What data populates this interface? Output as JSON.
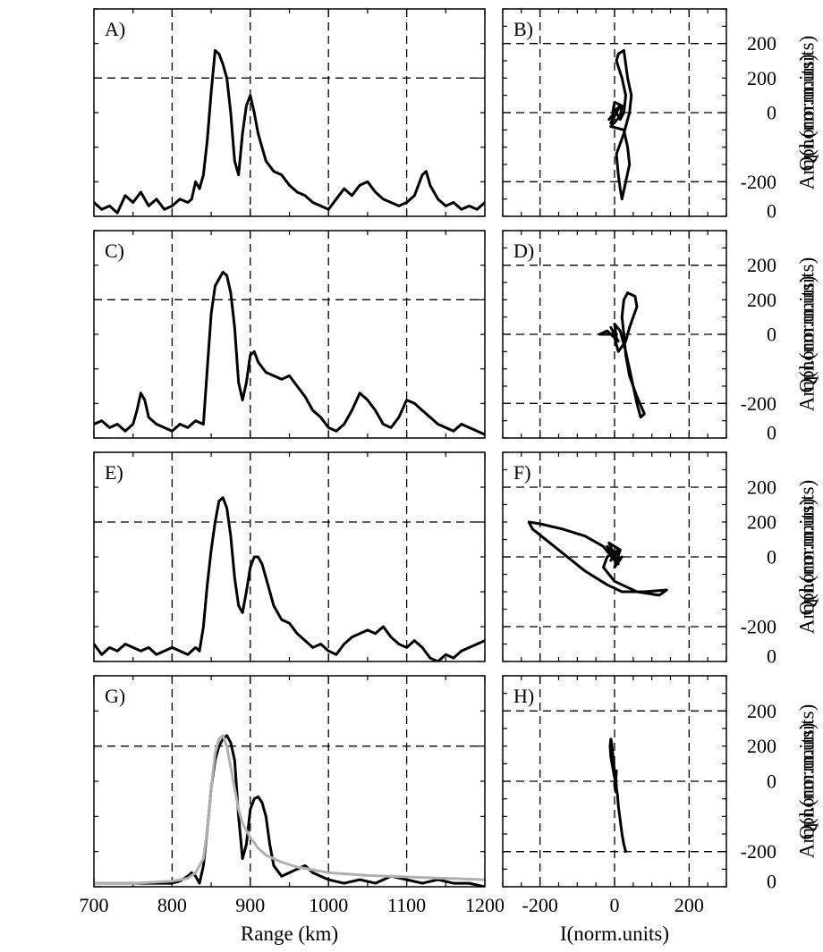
{
  "chart_data": [
    {
      "id": "A",
      "type": "line",
      "panel_label": "A)",
      "ylabel": "Ampl.(norm.units)",
      "xlim": [
        700,
        1200
      ],
      "ylim": [
        0,
        300
      ],
      "xticks": [
        700,
        800,
        900,
        1000,
        1100,
        1200
      ],
      "yticks": [
        0,
        200
      ],
      "x_tick_labels": false,
      "grid": true,
      "series": [
        {
          "color": "#000000",
          "x": [
            700,
            710,
            720,
            730,
            740,
            750,
            760,
            770,
            780,
            790,
            800,
            810,
            820,
            825,
            830,
            835,
            840,
            845,
            850,
            855,
            860,
            865,
            870,
            875,
            880,
            885,
            890,
            895,
            900,
            905,
            910,
            915,
            920,
            930,
            940,
            950,
            960,
            970,
            980,
            990,
            1000,
            1010,
            1020,
            1030,
            1040,
            1050,
            1060,
            1070,
            1080,
            1090,
            1100,
            1110,
            1120,
            1125,
            1130,
            1140,
            1150,
            1160,
            1170,
            1180,
            1190,
            1200
          ],
          "y": [
            20,
            10,
            15,
            5,
            30,
            20,
            35,
            15,
            25,
            10,
            15,
            25,
            20,
            25,
            50,
            40,
            60,
            110,
            180,
            240,
            235,
            220,
            200,
            150,
            80,
            60,
            120,
            160,
            175,
            150,
            120,
            100,
            80,
            65,
            60,
            45,
            35,
            30,
            20,
            15,
            10,
            25,
            40,
            30,
            45,
            50,
            35,
            25,
            20,
            15,
            20,
            30,
            60,
            65,
            45,
            25,
            15,
            20,
            10,
            15,
            10,
            20
          ]
        }
      ]
    },
    {
      "id": "B",
      "type": "line",
      "panel_label": "B)",
      "ylabel": "Q(norm.units)",
      "xlim": [
        -300,
        300
      ],
      "ylim": [
        -300,
        300
      ],
      "xticks": [
        -200,
        0,
        200
      ],
      "yticks": [
        -200,
        0,
        200
      ],
      "x_tick_labels": false,
      "grid": true,
      "series": [
        {
          "color": "#000000",
          "x": [
            0,
            -15,
            10,
            -10,
            15,
            -5,
            0,
            20,
            15,
            -10,
            25,
            35,
            40,
            30,
            20,
            15,
            10,
            5,
            25,
            40,
            45,
            35,
            25,
            10,
            5,
            20,
            30,
            25,
            15,
            0,
            -5,
            5
          ],
          "y": [
            0,
            -20,
            10,
            -30,
            20,
            0,
            30,
            20,
            -10,
            -40,
            -50,
            -100,
            -150,
            -200,
            -250,
            -220,
            -180,
            -120,
            -60,
            0,
            50,
            100,
            180,
            170,
            150,
            100,
            50,
            0,
            -20,
            10,
            -10,
            0
          ]
        }
      ]
    },
    {
      "id": "C",
      "type": "line",
      "panel_label": "C)",
      "ylabel": "Ampl.(norm.units)",
      "xlim": [
        700,
        1200
      ],
      "ylim": [
        0,
        300
      ],
      "xticks": [
        700,
        800,
        900,
        1000,
        1100,
        1200
      ],
      "yticks": [
        0,
        200
      ],
      "x_tick_labels": false,
      "grid": true,
      "series": [
        {
          "color": "#000000",
          "x": [
            700,
            710,
            720,
            730,
            740,
            750,
            755,
            760,
            765,
            770,
            780,
            790,
            800,
            810,
            820,
            830,
            840,
            845,
            850,
            855,
            860,
            865,
            870,
            875,
            880,
            885,
            890,
            895,
            900,
            905,
            910,
            920,
            930,
            940,
            950,
            960,
            970,
            980,
            990,
            1000,
            1010,
            1020,
            1030,
            1040,
            1050,
            1060,
            1070,
            1080,
            1090,
            1100,
            1110,
            1120,
            1130,
            1140,
            1150,
            1160,
            1170,
            1180,
            1190,
            1200
          ],
          "y": [
            20,
            25,
            15,
            20,
            10,
            20,
            40,
            65,
            55,
            30,
            20,
            15,
            10,
            20,
            15,
            25,
            20,
            100,
            180,
            220,
            230,
            240,
            235,
            210,
            160,
            80,
            55,
            80,
            120,
            125,
            110,
            95,
            90,
            85,
            90,
            75,
            60,
            40,
            30,
            15,
            10,
            20,
            40,
            65,
            55,
            40,
            20,
            15,
            30,
            55,
            50,
            40,
            30,
            20,
            15,
            10,
            20,
            15,
            10,
            5
          ]
        }
      ]
    },
    {
      "id": "D",
      "type": "line",
      "panel_label": "D)",
      "ylabel": "Q(norm.units)",
      "xlim": [
        -300,
        300
      ],
      "ylim": [
        -300,
        300
      ],
      "xticks": [
        -200,
        0,
        200
      ],
      "yticks": [
        -200,
        0,
        200
      ],
      "x_tick_labels": false,
      "grid": true,
      "series": [
        {
          "color": "#000000",
          "x": [
            0,
            -40,
            -20,
            10,
            -10,
            5,
            0,
            15,
            30,
            40,
            50,
            60,
            70,
            80,
            60,
            40,
            30,
            25,
            20,
            25,
            35,
            55,
            60,
            50,
            40,
            30,
            10,
            0,
            -5,
            5
          ],
          "y": [
            0,
            0,
            10,
            -20,
            20,
            -10,
            30,
            10,
            -50,
            -100,
            -150,
            -200,
            -240,
            -230,
            -180,
            -120,
            -60,
            0,
            50,
            100,
            120,
            110,
            80,
            50,
            20,
            -20,
            -50,
            -10,
            10,
            0
          ]
        }
      ]
    },
    {
      "id": "E",
      "type": "line",
      "panel_label": "E)",
      "ylabel": "Ampl.(norm.units)",
      "xlim": [
        700,
        1200
      ],
      "ylim": [
        0,
        300
      ],
      "xticks": [
        700,
        800,
        900,
        1000,
        1100,
        1200
      ],
      "yticks": [
        0,
        200
      ],
      "x_tick_labels": false,
      "grid": true,
      "series": [
        {
          "color": "#000000",
          "x": [
            700,
            710,
            720,
            730,
            740,
            750,
            760,
            770,
            780,
            790,
            800,
            810,
            820,
            830,
            835,
            840,
            845,
            850,
            855,
            860,
            865,
            870,
            875,
            880,
            885,
            890,
            895,
            900,
            905,
            910,
            915,
            920,
            930,
            940,
            950,
            960,
            970,
            980,
            990,
            1000,
            1010,
            1020,
            1030,
            1040,
            1050,
            1060,
            1070,
            1080,
            1090,
            1100,
            1110,
            1120,
            1130,
            1140,
            1150,
            1160,
            1170,
            1180,
            1190,
            1200
          ],
          "y": [
            25,
            10,
            20,
            15,
            25,
            20,
            15,
            20,
            10,
            15,
            20,
            15,
            10,
            20,
            15,
            50,
            110,
            160,
            200,
            230,
            235,
            220,
            180,
            120,
            80,
            70,
            100,
            135,
            150,
            150,
            140,
            120,
            80,
            60,
            55,
            40,
            30,
            20,
            25,
            15,
            10,
            25,
            35,
            40,
            45,
            40,
            50,
            35,
            25,
            20,
            30,
            20,
            5,
            0,
            10,
            5,
            15,
            20,
            25,
            30
          ]
        }
      ]
    },
    {
      "id": "F",
      "type": "line",
      "panel_label": "F)",
      "ylabel": "Q(norm.units)",
      "xlim": [
        -300,
        300
      ],
      "ylim": [
        -300,
        300
      ],
      "xticks": [
        -200,
        0,
        200
      ],
      "yticks": [
        -200,
        0,
        200
      ],
      "x_tick_labels": false,
      "grid": true,
      "series": [
        {
          "color": "#000000",
          "x": [
            0,
            -20,
            10,
            -15,
            15,
            0,
            20,
            0,
            -30,
            -80,
            -140,
            -200,
            -230,
            -220,
            -150,
            -80,
            -20,
            20,
            80,
            140,
            120,
            60,
            0,
            -30,
            -20,
            10,
            -10,
            5,
            0
          ],
          "y": [
            0,
            30,
            -20,
            40,
            20,
            -30,
            0,
            -10,
            30,
            60,
            80,
            95,
            100,
            80,
            20,
            -40,
            -80,
            -100,
            -100,
            -95,
            -110,
            -100,
            -70,
            -30,
            0,
            20,
            -10,
            10,
            0
          ]
        }
      ]
    },
    {
      "id": "G",
      "type": "line",
      "panel_label": "G)",
      "ylabel": "Ampl.(norm.units)",
      "xlabel": "Range (km)",
      "xlim": [
        700,
        1200
      ],
      "ylim": [
        0,
        300
      ],
      "xticks": [
        700,
        800,
        900,
        1000,
        1100,
        1200
      ],
      "yticks": [
        0,
        200
      ],
      "x_tick_labels": true,
      "grid": true,
      "series": [
        {
          "color": "#000000",
          "x": [
            700,
            750,
            800,
            810,
            820,
            825,
            830,
            835,
            840,
            845,
            850,
            855,
            860,
            865,
            870,
            875,
            880,
            885,
            890,
            895,
            900,
            905,
            910,
            915,
            920,
            925,
            930,
            940,
            950,
            960,
            970,
            980,
            990,
            1000,
            1020,
            1040,
            1060,
            1080,
            1100,
            1120,
            1140,
            1160,
            1180,
            1200
          ],
          "y": [
            5,
            5,
            5,
            8,
            15,
            20,
            15,
            5,
            30,
            80,
            140,
            180,
            200,
            210,
            215,
            205,
            180,
            100,
            40,
            60,
            110,
            125,
            128,
            120,
            100,
            60,
            30,
            15,
            20,
            25,
            30,
            20,
            15,
            10,
            5,
            10,
            5,
            15,
            10,
            5,
            10,
            5,
            5,
            0
          ]
        },
        {
          "color": "#b0b0b0",
          "x": [
            700,
            750,
            800,
            820,
            830,
            840,
            845,
            850,
            855,
            860,
            865,
            870,
            875,
            880,
            885,
            890,
            900,
            910,
            920,
            940,
            960,
            980,
            1000,
            1050,
            1100,
            1150,
            1200
          ],
          "y": [
            5,
            5,
            8,
            12,
            20,
            40,
            80,
            140,
            190,
            210,
            215,
            200,
            170,
            140,
            110,
            90,
            70,
            55,
            45,
            35,
            28,
            24,
            20,
            16,
            14,
            12,
            10
          ]
        }
      ]
    },
    {
      "id": "H",
      "type": "line",
      "panel_label": "H)",
      "ylabel": "Q(norm.units)",
      "xlabel": "I(norm.units)",
      "xlim": [
        -300,
        300
      ],
      "ylim": [
        -300,
        300
      ],
      "xticks": [
        -200,
        0,
        200
      ],
      "yticks": [
        -200,
        0,
        200
      ],
      "x_tick_labels": true,
      "grid": true,
      "series": [
        {
          "color": "#000000",
          "x": [
            30,
            25,
            20,
            15,
            10,
            8,
            5,
            3,
            0,
            -2,
            -5,
            -8,
            -10,
            -12,
            -10,
            -5,
            0,
            5,
            3,
            0,
            2,
            5,
            3
          ],
          "y": [
            -200,
            -180,
            -150,
            -110,
            -70,
            -40,
            -20,
            0,
            20,
            50,
            80,
            110,
            120,
            100,
            70,
            40,
            10,
            -10,
            -30,
            -10,
            10,
            30,
            0
          ]
        }
      ]
    }
  ]
}
